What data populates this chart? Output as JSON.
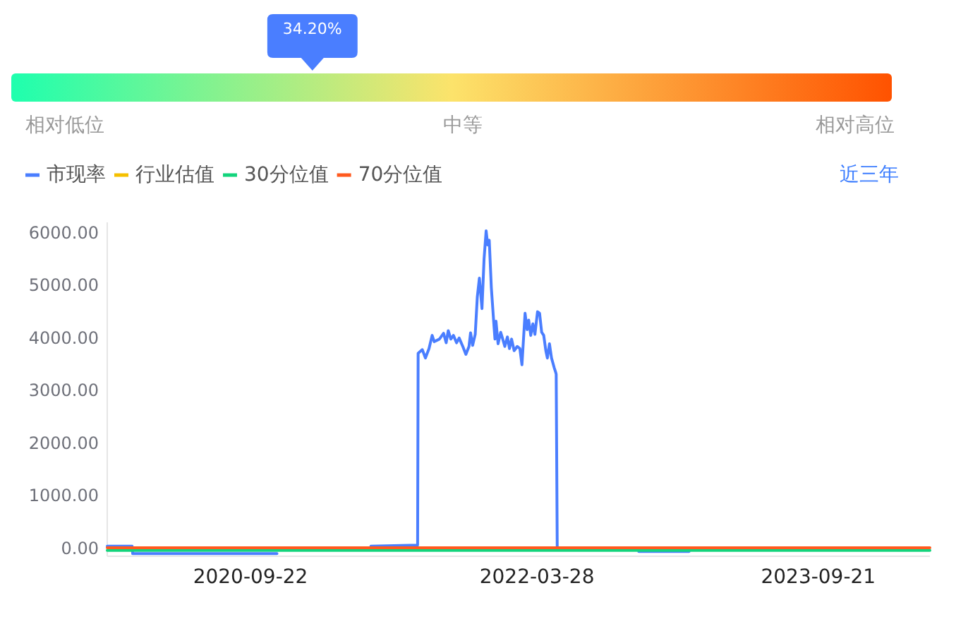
{
  "chart_data": [
    {
      "type": "other",
      "values": [
        34.2
      ],
      "value_labels": [
        "34.20%"
      ],
      "color": "#4a7eff",
      "annotations": [
        "相对低位",
        "中等",
        "相对高位"
      ]
    },
    {
      "type": "line",
      "series": [
        {
          "name": "市现率",
          "color": "#4a7eff",
          "x": [
            "2019-12-21",
            "2020-02-07",
            "2020-02-08",
            "2020-11-12",
            "2020-11-14",
            "2021-05-12",
            "2021-08-10",
            "2021-08-11",
            "2021-08-19",
            "2021-08-25",
            "2021-09-01",
            "2021-09-07",
            "2021-09-11",
            "2021-09-21",
            "2021-09-29",
            "2021-10-04",
            "2021-10-08",
            "2021-10-13",
            "2021-10-18",
            "2021-10-24",
            "2021-10-29",
            "2021-11-05",
            "2021-11-11",
            "2021-11-17",
            "2021-11-20",
            "2021-11-24",
            "2021-11-29",
            "2021-12-03",
            "2021-12-07",
            "2021-12-12",
            "2021-12-16",
            "2021-12-20",
            "2021-12-23",
            "2021-12-26",
            "2021-12-30",
            "2022-01-04",
            "2022-01-06",
            "2022-01-08",
            "2022-01-12",
            "2022-01-17",
            "2022-01-21",
            "2022-01-25",
            "2022-01-30",
            "2022-02-03",
            "2022-02-07",
            "2022-02-12",
            "2022-02-18",
            "2022-02-23",
            "2022-02-27",
            "2022-03-05",
            "2022-03-09",
            "2022-03-12",
            "2022-03-16",
            "2022-03-20",
            "2022-03-24",
            "2022-03-29",
            "2022-04-02",
            "2022-04-06",
            "2022-04-10",
            "2022-04-14",
            "2022-04-17",
            "2022-04-21",
            "2022-04-25",
            "2022-04-30",
            "2022-05-03",
            "2022-05-04",
            "2022-05-06",
            "2022-05-08",
            "2022-10-10",
            "2023-01-15"
          ],
          "values": [
            40,
            40,
            -100,
            -100,
            null,
            40,
            60,
            3710,
            3780,
            3620,
            3800,
            4050,
            3930,
            3980,
            4090,
            3910,
            4140,
            3980,
            4050,
            3910,
            4000,
            3840,
            3690,
            3840,
            4100,
            3860,
            4070,
            4780,
            5140,
            4560,
            5500,
            6040,
            5770,
            5860,
            4960,
            4250,
            3980,
            4320,
            3890,
            4110,
            3980,
            3840,
            4020,
            3800,
            3980,
            3760,
            3840,
            3800,
            3490,
            4470,
            4160,
            4340,
            4050,
            4270,
            4070,
            4500,
            4470,
            4110,
            4050,
            3760,
            3620,
            3890,
            3620,
            3440,
            3350,
            3310,
            0,
            null,
            -60,
            -60
          ]
        },
        {
          "name": "行业估值",
          "color": "#f5c000",
          "values": [
            null
          ]
        },
        {
          "name": "30分位值",
          "color": "#13d47c",
          "x": [
            "2019-12-21",
            "2024-04-23"
          ],
          "values": [
            -40,
            -40
          ]
        },
        {
          "name": "70分位值",
          "color": "#ff5a1f",
          "x": [
            "2019-12-21",
            "2024-04-23"
          ],
          "values": [
            10,
            10
          ]
        }
      ],
      "xlim": [
        "2019-12-21",
        "2024-04-23"
      ],
      "xticks": [
        "2020-09-22",
        "2022-03-28",
        "2023-09-21"
      ],
      "ylim": [
        -150,
        6200
      ],
      "yticks": [
        {
          "value": 0,
          "label": "0.00"
        },
        {
          "value": 1000,
          "label": "1000.00"
        },
        {
          "value": 2000,
          "label": "2000.00"
        },
        {
          "value": 3000,
          "label": "3000.00"
        },
        {
          "value": 4000,
          "label": "4000.00"
        },
        {
          "value": 5000,
          "label": "5000.00"
        },
        {
          "value": 6000,
          "label": "6000.00"
        }
      ],
      "legend": "top left",
      "annotations": [
        "近三年"
      ]
    }
  ]
}
